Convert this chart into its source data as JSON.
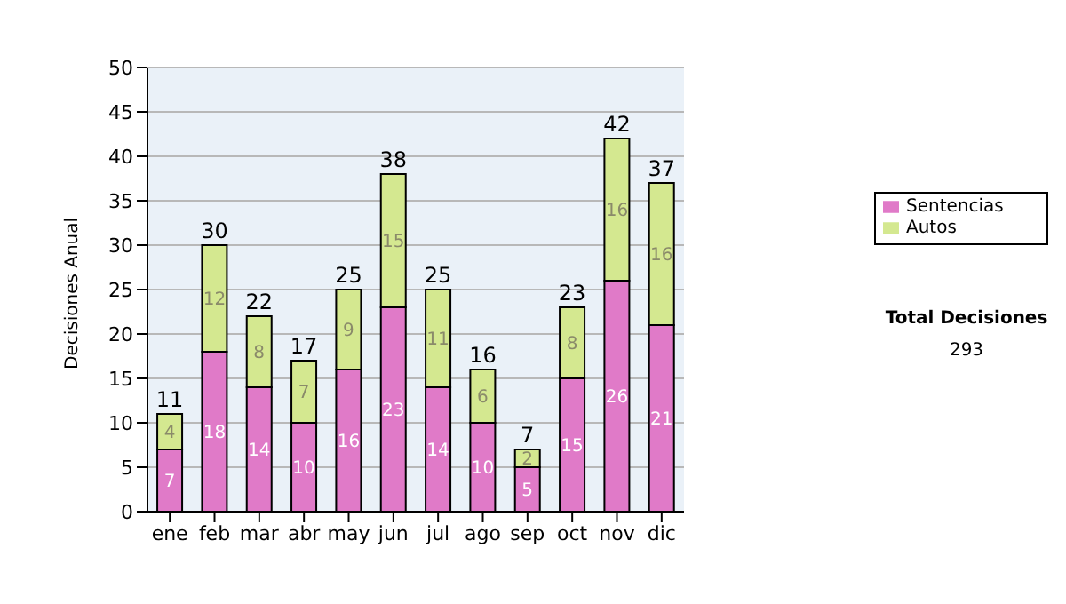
{
  "chart_data": {
    "type": "bar",
    "stacked": true,
    "ylabel": "Decisiones Anual",
    "categories": [
      "ene",
      "feb",
      "mar",
      "abr",
      "may",
      "jun",
      "jul",
      "ago",
      "sep",
      "oct",
      "nov",
      "dic"
    ],
    "series": [
      {
        "name": "Sentencias",
        "color": "#e07ac8",
        "values": [
          7,
          18,
          14,
          10,
          16,
          23,
          14,
          10,
          5,
          15,
          26,
          21
        ]
      },
      {
        "name": "Autos",
        "color": "#d4e890",
        "values": [
          4,
          12,
          8,
          7,
          9,
          15,
          11,
          6,
          2,
          8,
          16,
          16
        ]
      }
    ],
    "ylim": [
      0,
      50
    ],
    "yticks": [
      0,
      5,
      10,
      15,
      20,
      25,
      30,
      35,
      40,
      45,
      50
    ],
    "grid": "y",
    "legend": "right",
    "data_labels": true,
    "totals": [
      "11",
      "30",
      "22",
      "17",
      "25",
      "38",
      "25",
      "16",
      "7",
      "23",
      "42",
      "37"
    ],
    "annotations": [
      "Total Decisiones",
      "293"
    ]
  }
}
